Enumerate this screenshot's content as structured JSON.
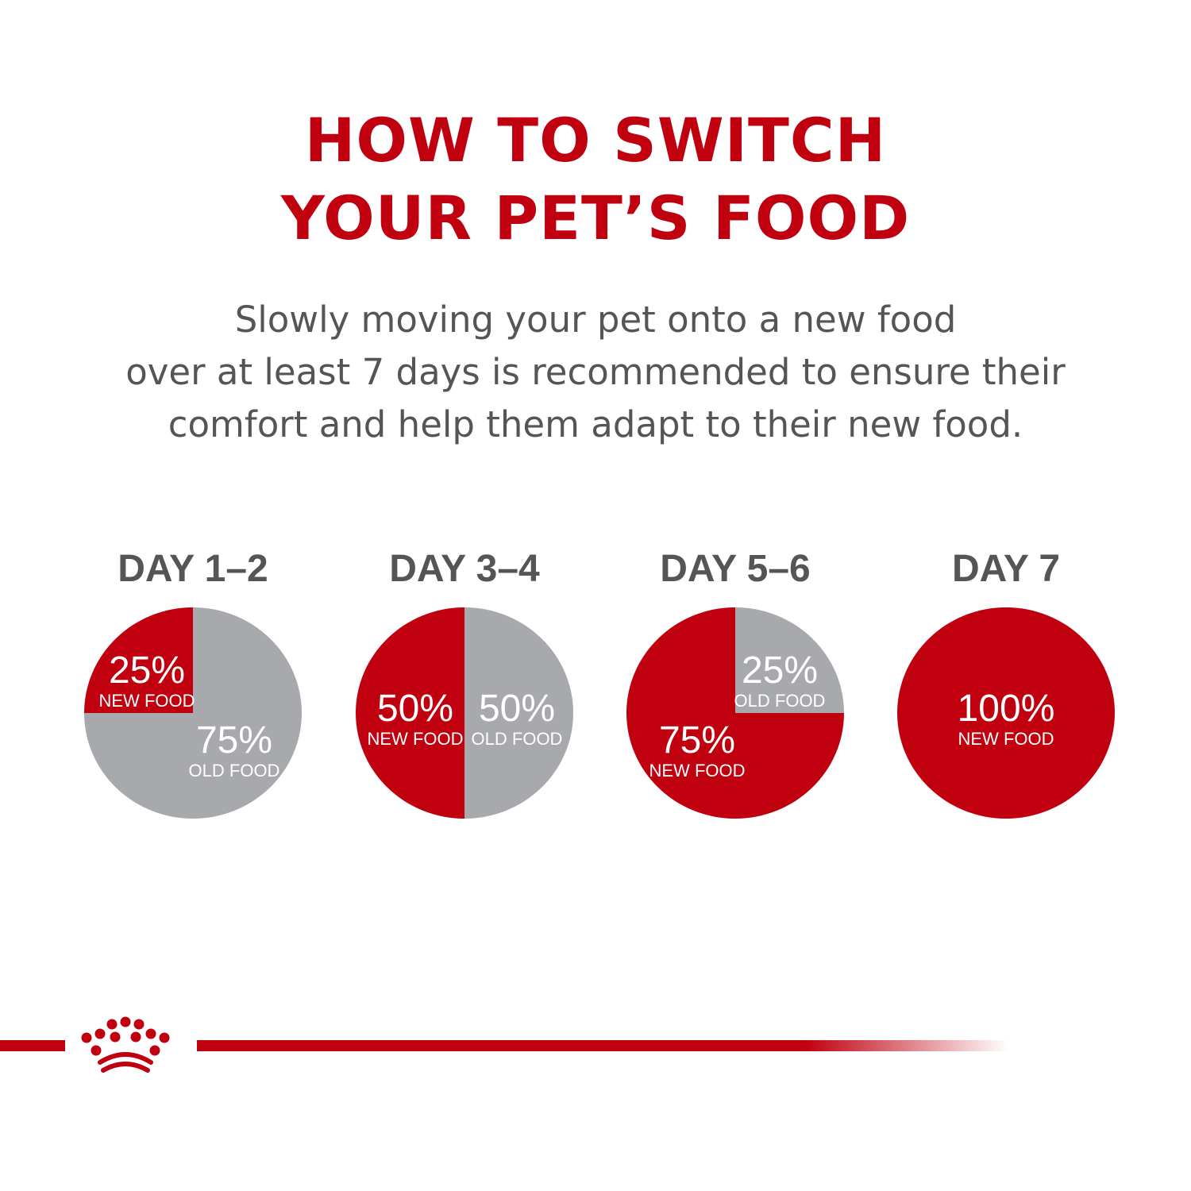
{
  "title": {
    "line1": "HOW TO SWITCH",
    "line2": "YOUR PET’S FOOD"
  },
  "intro": {
    "line1": "Slowly moving your pet onto a new food",
    "line2": "over at least 7 days is recommended to ensure their",
    "line3": "comfort and help them adapt to their new food."
  },
  "colors": {
    "new_food": "#c0000f",
    "old_food": "#a8a9ad",
    "title": "#c0000f",
    "text": "#555555"
  },
  "chart_data": {
    "type": "pie",
    "charts": [
      {
        "label": "DAY 1–2",
        "slices": [
          {
            "name": "NEW FOOD",
            "value": 25,
            "text": "25%",
            "color": "#c0000f"
          },
          {
            "name": "OLD FOOD",
            "value": 75,
            "text": "75%",
            "color": "#a8a9ad"
          }
        ]
      },
      {
        "label": "DAY 3–4",
        "slices": [
          {
            "name": "NEW FOOD",
            "value": 50,
            "text": "50%",
            "color": "#c0000f"
          },
          {
            "name": "OLD FOOD",
            "value": 50,
            "text": "50%",
            "color": "#a8a9ad"
          }
        ]
      },
      {
        "label": "DAY 5–6",
        "slices": [
          {
            "name": "NEW FOOD",
            "value": 75,
            "text": "75%",
            "color": "#c0000f"
          },
          {
            "name": "OLD FOOD",
            "value": 25,
            "text": "25%",
            "color": "#a8a9ad"
          }
        ]
      },
      {
        "label": "DAY 7",
        "slices": [
          {
            "name": "NEW FOOD",
            "value": 100,
            "text": "100%",
            "color": "#c0000f"
          }
        ]
      }
    ]
  },
  "footer": {
    "logo_icon": "crown-icon"
  }
}
